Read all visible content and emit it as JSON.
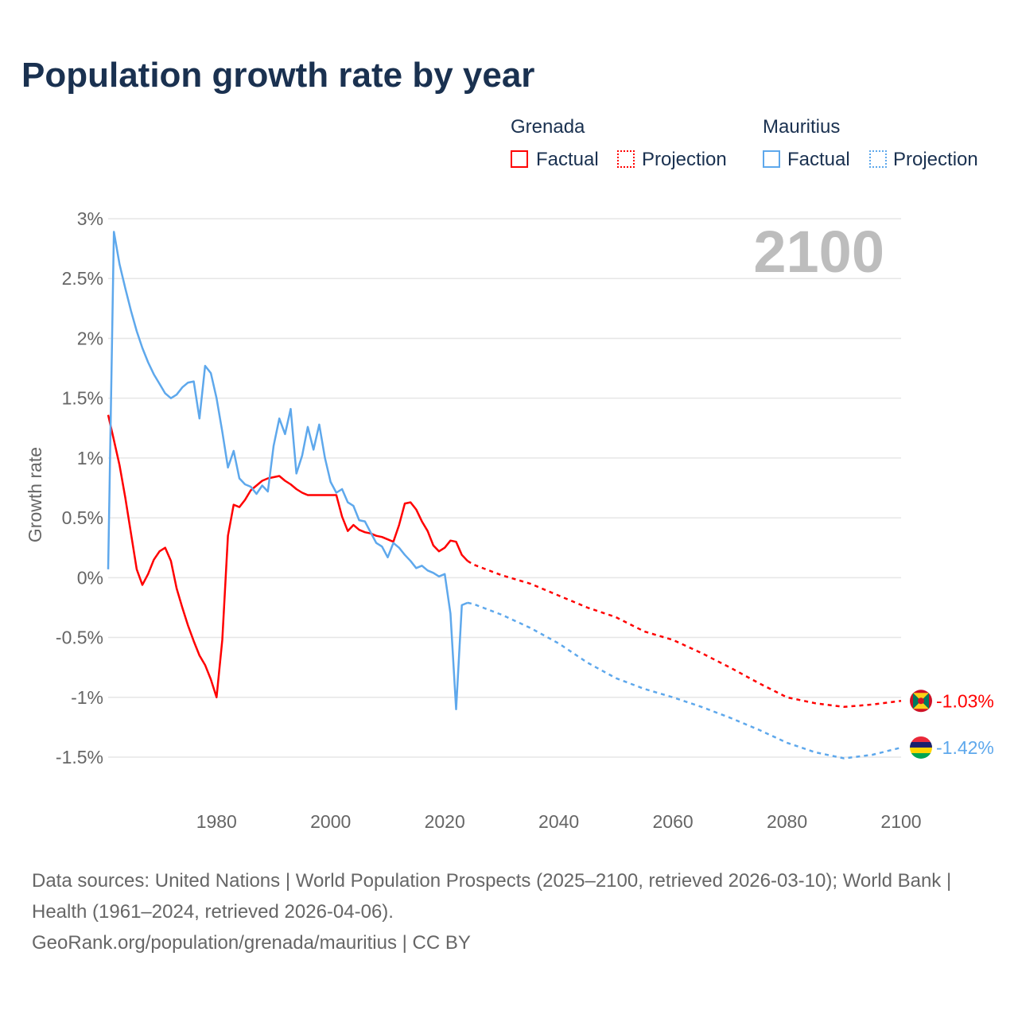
{
  "title": "Population growth rate by year",
  "legend": {
    "g1": "Grenada",
    "g2": "Mauritius",
    "factual": "Factual",
    "projection": "Projection"
  },
  "colors": {
    "grenada": "#ff0000",
    "mauritius": "#5ea8ec",
    "grid": "#e6e6e6",
    "tick": "#666666",
    "year": "#bdbdbd"
  },
  "chart_data": {
    "type": "line",
    "title": "Population growth rate by year",
    "ylabel": "Growth rate",
    "xlim": [
      1961,
      2100
    ],
    "ylim": [
      -1.5,
      3
    ],
    "yticks": [
      {
        "v": 3,
        "l": "3%"
      },
      {
        "v": 2.5,
        "l": "2.5%"
      },
      {
        "v": 2,
        "l": "2%"
      },
      {
        "v": 1.5,
        "l": "1.5%"
      },
      {
        "v": 1,
        "l": "1%"
      },
      {
        "v": 0.5,
        "l": "0.5%"
      },
      {
        "v": 0,
        "l": "0%"
      },
      {
        "v": -0.5,
        "l": "-0.5%"
      },
      {
        "v": -1,
        "l": "-1%"
      },
      {
        "v": -1.5,
        "l": "-1.5%"
      }
    ],
    "xticks": [
      {
        "v": 1980,
        "l": "1980"
      },
      {
        "v": 2000,
        "l": "2000"
      },
      {
        "v": 2020,
        "l": "2020"
      },
      {
        "v": 2040,
        "l": "2040"
      },
      {
        "v": 2060,
        "l": "2060"
      },
      {
        "v": 2080,
        "l": "2080"
      },
      {
        "v": 2100,
        "l": "2100"
      }
    ],
    "year_label": "2100",
    "series": [
      {
        "name": "Grenada",
        "kind": "factual",
        "color": "#ff0000",
        "x_start": 1961,
        "values": [
          1.36,
          1.15,
          0.94,
          0.67,
          0.37,
          0.07,
          -0.06,
          0.03,
          0.15,
          0.22,
          0.25,
          0.14,
          -0.09,
          -0.25,
          -0.4,
          -0.53,
          -0.65,
          -0.73,
          -0.85,
          -1.0,
          -0.52,
          0.35,
          0.61,
          0.59,
          0.65,
          0.73,
          0.77,
          0.81,
          0.83,
          0.84,
          0.85,
          0.81,
          0.78,
          0.74,
          0.71,
          0.69,
          0.69,
          0.69,
          0.69,
          0.69,
          0.69,
          0.51,
          0.39,
          0.44,
          0.4,
          0.38,
          0.37,
          0.35,
          0.34,
          0.32,
          0.3,
          0.44,
          0.62,
          0.63,
          0.57,
          0.47,
          0.39,
          0.27,
          0.22,
          0.25,
          0.31,
          0.3,
          0.19,
          0.14
        ]
      },
      {
        "name": "Grenada",
        "kind": "projection",
        "color": "#ff0000",
        "x": [
          2024,
          2025,
          2030,
          2035,
          2040,
          2045,
          2050,
          2055,
          2060,
          2065,
          2070,
          2075,
          2080,
          2085,
          2090,
          2095,
          2100
        ],
        "values": [
          0.14,
          0.11,
          0.02,
          -0.05,
          -0.15,
          -0.25,
          -0.33,
          -0.45,
          -0.52,
          -0.63,
          -0.75,
          -0.88,
          -1.0,
          -1.05,
          -1.08,
          -1.06,
          -1.03
        ]
      },
      {
        "name": "Mauritius",
        "kind": "factual",
        "color": "#5ea8ec",
        "x_start": 1961,
        "values": [
          0.07,
          2.89,
          2.62,
          2.42,
          2.23,
          2.06,
          1.92,
          1.8,
          1.7,
          1.62,
          1.54,
          1.5,
          1.53,
          1.59,
          1.63,
          1.64,
          1.33,
          1.77,
          1.71,
          1.5,
          1.22,
          0.92,
          1.06,
          0.83,
          0.78,
          0.76,
          0.7,
          0.77,
          0.72,
          1.1,
          1.33,
          1.2,
          1.41,
          0.87,
          1.02,
          1.26,
          1.07,
          1.28,
          1.0,
          0.8,
          0.71,
          0.74,
          0.63,
          0.6,
          0.48,
          0.47,
          0.38,
          0.29,
          0.26,
          0.17,
          0.29,
          0.25,
          0.19,
          0.14,
          0.08,
          0.1,
          0.06,
          0.04,
          0.01,
          0.03,
          -0.3,
          -1.1,
          -0.23,
          -0.21
        ]
      },
      {
        "name": "Mauritius",
        "kind": "projection",
        "color": "#5ea8ec",
        "x": [
          2024,
          2025,
          2030,
          2035,
          2040,
          2045,
          2050,
          2055,
          2060,
          2065,
          2070,
          2075,
          2080,
          2085,
          2090,
          2095,
          2100
        ],
        "values": [
          -0.21,
          -0.22,
          -0.31,
          -0.42,
          -0.55,
          -0.71,
          -0.84,
          -0.93,
          -1.0,
          -1.08,
          -1.17,
          -1.27,
          -1.38,
          -1.46,
          -1.51,
          -1.48,
          -1.42
        ]
      }
    ],
    "end_labels": [
      {
        "name": "Grenada",
        "value": -1.03,
        "label": "-1.03%"
      },
      {
        "name": "Mauritius",
        "value": -1.42,
        "label": "-1.42%"
      }
    ]
  },
  "footer": {
    "line1": "Data sources: United Nations | World Population Prospects (2025–2100, retrieved 2026-03-10); World Bank | Health (1961–2024, retrieved 2026-04-06).",
    "line2": "GeoRank.org/population/grenada/mauritius | CC BY"
  }
}
